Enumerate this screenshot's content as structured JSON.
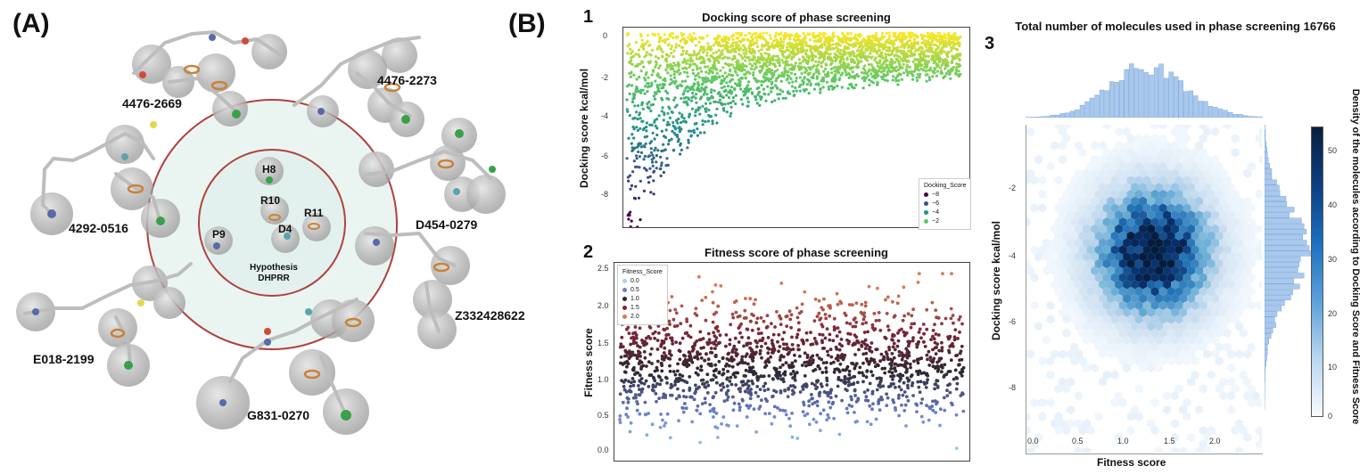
{
  "panel_a": {
    "letter": "(A)",
    "hypothesis_line1": "Hypothesis",
    "hypothesis_line2": "DHPRR",
    "features": [
      "H8",
      "R10",
      "R11",
      "P9",
      "D4"
    ],
    "molecules": [
      "4476-2669",
      "4476-2273",
      "4292-0516",
      "D454-0279",
      "Z332428622",
      "E018-2199",
      "G831-0270"
    ]
  },
  "panel_b": {
    "letter": "(B)",
    "sub1": "1",
    "sub2": "2",
    "sub3": "3",
    "total_title": "Total number of molecules used in phase screening 16766"
  },
  "chart_data": [
    {
      "type": "scatter",
      "title": "Docking score of phase screening",
      "ylabel": "Docking score kcal/mol",
      "xlabel": "",
      "ylim": [
        -9,
        0
      ],
      "yticks": [
        "0",
        "-2",
        "-4",
        "-6",
        "-8"
      ],
      "n_points": 16766,
      "trend": "sorted by docking score; lower envelope rises from -9 to about -2, points fill up to 0",
      "legend": {
        "title": "Docking_Score",
        "entries": [
          "−8",
          "−6",
          "−4",
          "−2"
        ],
        "placement": "lower-right"
      },
      "colormap": [
        "#440154",
        "#3b528b",
        "#21918c",
        "#5ec962",
        "#fde725"
      ]
    },
    {
      "type": "scatter",
      "title": "Fitness score of phase screening",
      "ylabel": "Fitness score",
      "xlabel": "",
      "ylim": [
        0,
        2.5
      ],
      "yticks": [
        "2.5",
        "2.0",
        "1.5",
        "1.0",
        "0.5",
        "0.0"
      ],
      "distribution": "fitness centred near 1.25, spread 0.1–2.4",
      "legend": {
        "title": "Fitness_Score",
        "entries": [
          "0.0",
          "0.5",
          "1.0",
          "1.5",
          "2.0"
        ],
        "placement": "top-left"
      },
      "colormap": [
        "#9ed8ea",
        "#6b7fd0",
        "#2c2630",
        "#7a2438",
        "#d77a55"
      ]
    },
    {
      "type": "heatmap",
      "subtype": "hexbin joint plot",
      "xlabel": "Fitness score",
      "ylabel": "Docking score kcal/mol",
      "xticks": [
        "0.0",
        "0.5",
        "1.0",
        "1.5",
        "2.0"
      ],
      "yticks": [
        "-2",
        "-4",
        "-6",
        "-8"
      ],
      "xlim": [
        -0.1,
        2.5
      ],
      "ylim": [
        -9,
        0
      ],
      "peak": {
        "x": 1.3,
        "y": -3.5
      },
      "colorbar": {
        "label": "Density of the molecules according to Docking Score and Fitness Score",
        "ticks": [
          "50",
          "40",
          "30",
          "20",
          "10",
          "0"
        ],
        "range": [
          0,
          53
        ]
      },
      "marginals": "histograms of fitness (top) and docking score (right)"
    }
  ]
}
